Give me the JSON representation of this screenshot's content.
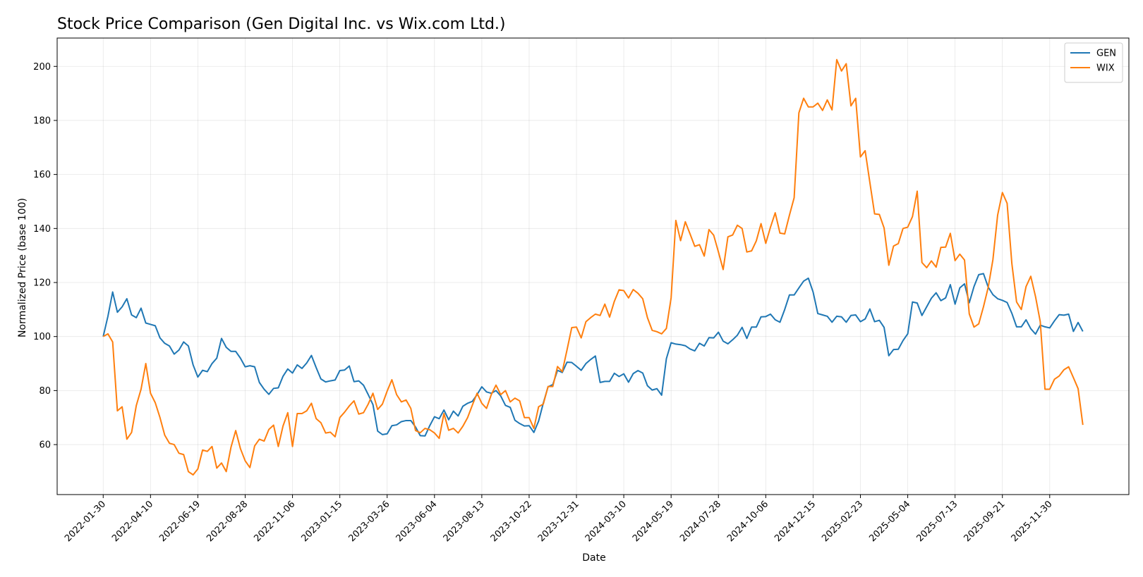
{
  "chart_data": {
    "type": "line",
    "title": "Stock Price Comparison (Gen Digital Inc. vs Wix.com Ltd.)",
    "xlabel": "Date",
    "ylabel": "Normalized Price (base 100)",
    "ylim": [
      41.5,
      210.5
    ],
    "yticks": [
      60,
      80,
      100,
      120,
      140,
      160,
      180,
      200
    ],
    "xticks": [
      "2022-01-30",
      "2022-04-10",
      "2022-06-19",
      "2022-08-28",
      "2022-11-06",
      "2023-01-15",
      "2023-03-26",
      "2023-06-04",
      "2023-08-13",
      "2023-10-22",
      "2023-12-31",
      "2024-03-10",
      "2024-05-19",
      "2024-07-28",
      "2024-10-06",
      "2024-12-15",
      "2025-02-23",
      "2025-05-04",
      "2025-07-13",
      "2025-09-21",
      "2025-11-30"
    ],
    "x_start": "2022-01-30",
    "x_step_weeks": 1,
    "legend_position": "top-right",
    "grid": true,
    "series": [
      {
        "name": "GEN",
        "color": "#1f77b4",
        "values": [
          100,
          107.5,
          116.5,
          109,
          111,
          114,
          108,
          107,
          110.5,
          105,
          104.5,
          104,
          99.5,
          97.5,
          96.5,
          93.5,
          95,
          98,
          96.5,
          89.5,
          85,
          87.5,
          87,
          90,
          92,
          99.3,
          96,
          94.5,
          94.5,
          92,
          88.8,
          89.2,
          88.8,
          83,
          80.5,
          78.6,
          80.8,
          81,
          85.3,
          88,
          86.5,
          89.5,
          88.2,
          90.2,
          93,
          88.5,
          84.3,
          83.2,
          83.6,
          83.9,
          87.4,
          87.6,
          89.1,
          83.3,
          83.6,
          82,
          78.5,
          74.8,
          65,
          63.7,
          64,
          67,
          67.3,
          68.5,
          68.9,
          68.9,
          66.5,
          63.3,
          63.2,
          67,
          70.3,
          69.6,
          72.8,
          69.2,
          72.4,
          70.6,
          74.2,
          75.3,
          76,
          78.5,
          81.4,
          79.5,
          79,
          80,
          78,
          74.5,
          73.8,
          69,
          67.8,
          66.9,
          67,
          64.5,
          68.7,
          75.4,
          81.4,
          82.2,
          87.5,
          86.7,
          90.5,
          90.4,
          89,
          87.5,
          90,
          91.5,
          92.8,
          83,
          83.4,
          83.4,
          86.4,
          85.2,
          86.2,
          83.1,
          86.3,
          87.4,
          86.5,
          81.8,
          80.2,
          80.7,
          78.3,
          91.8,
          97.7,
          97.2,
          97,
          96.6,
          95.4,
          94.7,
          97.5,
          96.5,
          99.6,
          99.5,
          101.6,
          98.3,
          97.3,
          98.8,
          100.5,
          103.4,
          99.3,
          103.5,
          103.5,
          107.3,
          107.4,
          108.3,
          106.2,
          105.3,
          110,
          115.4,
          115.4,
          118,
          120.5,
          121.6,
          116.5,
          108.5,
          108,
          107.5,
          105.3,
          107.5,
          107.3,
          105.3,
          107.8,
          108,
          105.5,
          106.5,
          110.2,
          105.5,
          106,
          103.4,
          92.9,
          95.2,
          95.3,
          98.5,
          101,
          112.8,
          112.4,
          107.8,
          111,
          114.2,
          116.2,
          113.3,
          114.3,
          119.2,
          112,
          118,
          119.5,
          112.5,
          118.5,
          122.9,
          123.3,
          118.3,
          115.5,
          114,
          113.4,
          112.6,
          108.6,
          103.6,
          103.6,
          106.2,
          102.9,
          100.9,
          104.2,
          103.6,
          103.2,
          105.8,
          108.1,
          107.9,
          108.3,
          101.9,
          105.2,
          101.9
        ]
      },
      {
        "name": "WIX",
        "color": "#ff7f0e",
        "values": [
          100,
          101,
          98,
          72.5,
          74,
          62,
          64.5,
          74.5,
          80.5,
          90,
          79,
          75.5,
          70,
          63.5,
          60.5,
          60,
          56.8,
          56.3,
          50,
          48.8,
          51,
          58,
          57.5,
          59.3,
          51.3,
          53.2,
          50,
          59,
          65.2,
          58.5,
          54,
          51.5,
          59.5,
          62,
          61.3,
          65.6,
          67.2,
          59.3,
          66.9,
          71.8,
          59.3,
          71.5,
          71.5,
          72.5,
          75.3,
          69.6,
          68.1,
          64.3,
          64.6,
          62.9,
          70,
          72,
          74.3,
          76.2,
          71.3,
          71.8,
          75,
          79,
          73,
          75,
          79.8,
          84,
          78.5,
          75.8,
          76.5,
          73.4,
          65.2,
          64.4,
          66,
          65.5,
          64.3,
          62.3,
          71.5,
          65.3,
          66,
          64.3,
          66.8,
          70,
          74.6,
          79,
          75.3,
          73.4,
          78.5,
          82,
          78.5,
          80,
          75.8,
          77.2,
          76.2,
          70,
          70,
          66,
          74,
          75,
          81.5,
          81.5,
          88.9,
          87,
          95,
          103.3,
          103.5,
          99.5,
          105.5,
          107,
          108.3,
          107.8,
          112,
          107.2,
          113,
          117.3,
          117,
          114.3,
          117.4,
          116,
          114,
          107,
          102.3,
          101.8,
          101,
          103,
          114.3,
          143,
          135.5,
          142.5,
          138,
          133.4,
          134,
          129.8,
          139.6,
          137.5,
          131.3,
          124.8,
          136.9,
          137.6,
          141.2,
          140,
          131.3,
          131.7,
          135.4,
          141.8,
          134.5,
          140.5,
          145.8,
          138.3,
          138,
          144.9,
          151.4,
          182.8,
          188.2,
          185,
          185,
          186.4,
          183.7,
          187.6,
          183.9,
          202.5,
          198.3,
          201,
          185.4,
          188.2,
          166.5,
          168.8,
          157,
          145.4,
          145.2,
          140.2,
          126.4,
          133.5,
          134.4,
          140,
          140.5,
          144.4,
          153.8,
          127.4,
          125.5,
          128,
          125.7,
          133,
          133.1,
          138.2,
          128.1,
          130.5,
          128.3,
          108.4,
          103.5,
          104.7,
          111,
          118.2,
          128.5,
          145,
          153.3,
          149.3,
          127,
          112.8,
          110,
          118.5,
          122.3,
          114.8,
          105.5,
          80.5,
          80.5,
          84.2,
          85.4,
          87.7,
          88.8,
          84.8,
          80.7,
          67.3
        ]
      }
    ]
  }
}
